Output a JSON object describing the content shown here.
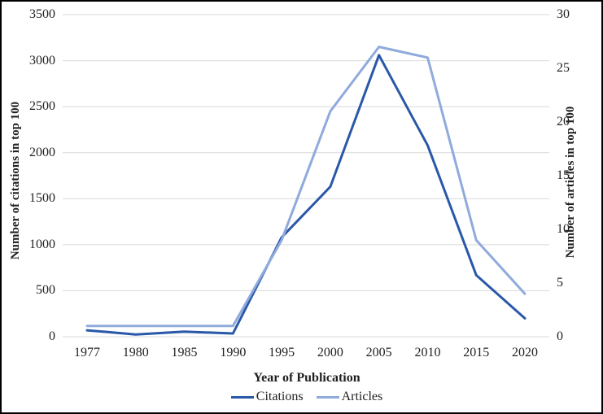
{
  "chart_data": {
    "type": "line",
    "title": "",
    "x_title": "Year of Publication",
    "y_left_title": "Number of citations in top 100",
    "y_right_title": "Number of articles in top 100",
    "categories": [
      "1977",
      "1980",
      "1985",
      "1990",
      "1995",
      "2000",
      "2005",
      "2010",
      "2015",
      "2020"
    ],
    "series": [
      {
        "name": "Citations",
        "axis": "left",
        "color": "#2a58a9",
        "values": [
          70,
          25,
          55,
          35,
          1080,
          1630,
          3060,
          2080,
          670,
          200
        ]
      },
      {
        "name": "Articles",
        "axis": "right",
        "color": "#8faadc",
        "values": [
          1,
          1,
          1,
          1,
          9,
          21,
          27,
          26,
          9,
          4
        ]
      }
    ],
    "y_left": {
      "min": 0,
      "max": 3500,
      "step": 500,
      "ticks": [
        "0",
        "500",
        "1000",
        "1500",
        "2000",
        "2500",
        "3000",
        "3500"
      ]
    },
    "y_right": {
      "min": 0,
      "max": 30,
      "step": 5,
      "ticks": [
        "0",
        "5",
        "10",
        "15",
        "20",
        "25",
        "30"
      ]
    },
    "grid_color": "#d9d9d9",
    "legend_position": "bottom",
    "grid": "horizontal-only"
  }
}
